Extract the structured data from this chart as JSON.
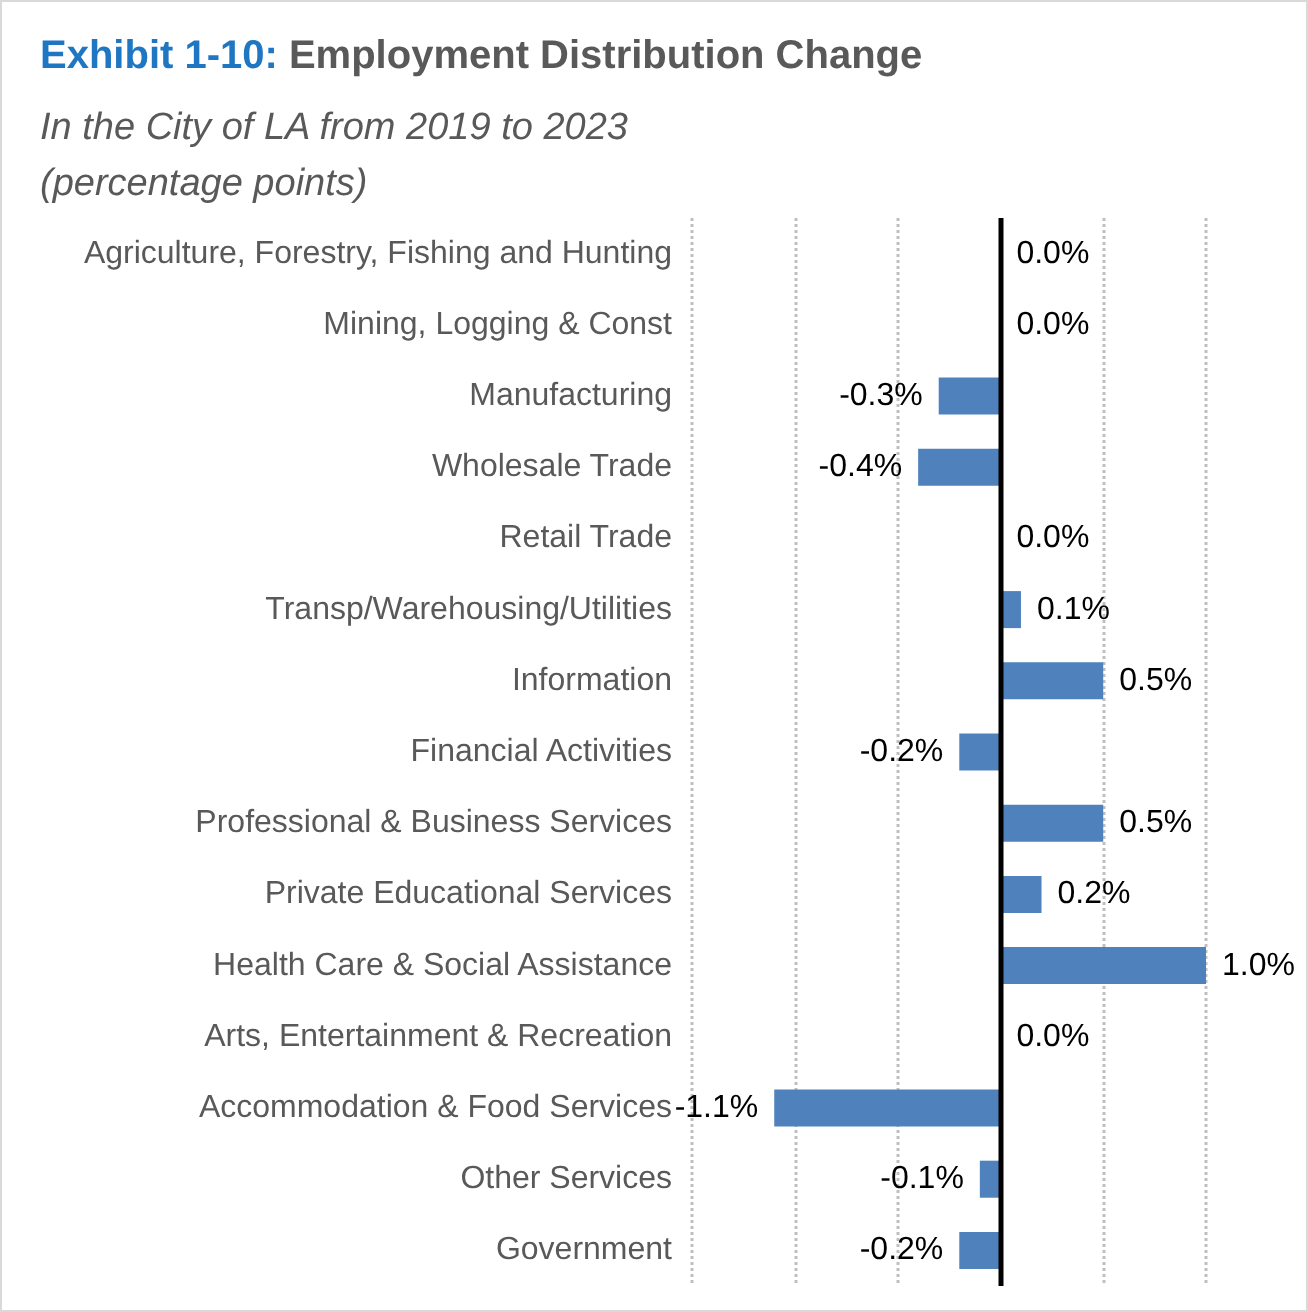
{
  "chart_data": {
    "type": "bar",
    "orientation": "horizontal",
    "title": "Exhibit 1-10: Employment Distribution Change",
    "subtitle": "In the City of LA from 2019 to 2023\n(percentage points)",
    "categories": [
      "Agriculture, Forestry, Fishing and Hunting",
      "Mining, Logging & Const",
      "Manufacturing",
      "Wholesale Trade",
      "Retail Trade",
      "Transp/Warehousing/Utilities",
      "Information",
      "Financial Activities",
      "Professional & Business Services",
      "Private Educational Services",
      "Health Care & Social Assistance",
      "Arts, Entertainment & Recreation",
      "Accommodation & Food Services",
      "Other Services",
      "Government"
    ],
    "values": [
      0.0,
      0.0,
      -0.3,
      -0.4,
      0.0,
      0.1,
      0.5,
      -0.2,
      0.5,
      0.2,
      1.0,
      0.0,
      -1.1,
      -0.1,
      -0.2
    ],
    "value_labels": [
      "0.0%",
      "0.0%",
      "-0.3%",
      "-0.4%",
      "0.0%",
      "0.1%",
      "0.5%",
      "-0.2%",
      "0.5%",
      "0.2%",
      "1.0%",
      "0.0%",
      "-1.1%",
      "-0.1%",
      "-0.2%"
    ],
    "color": "#4f81bd",
    "xticks": [
      {
        "value": -1.5,
        "label": null
      },
      {
        "value": -1.0,
        "label": null
      },
      {
        "value": -0.5,
        "label": null
      },
      {
        "value": 0.5,
        "label": null
      },
      {
        "value": 1.0,
        "label": null
      }
    ],
    "tick_labels": "y",
    "grid": "x"
  }
}
